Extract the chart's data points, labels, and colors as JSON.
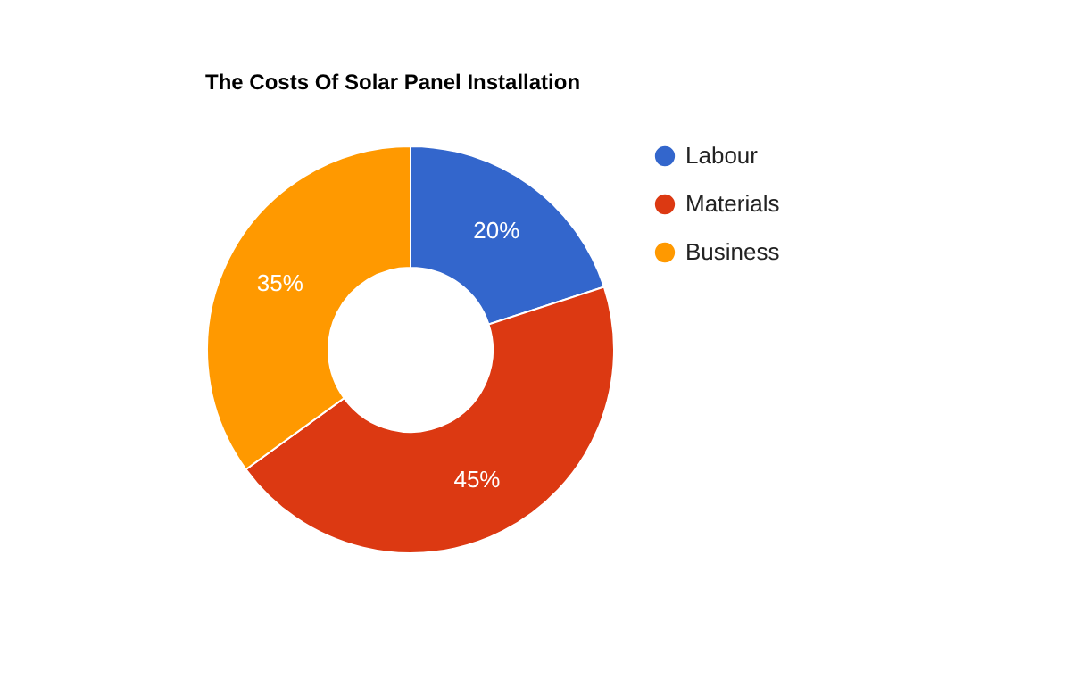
{
  "chart_data": {
    "type": "donut",
    "title": "The Costs Of Solar Panel Installation",
    "categories": [
      "Labour",
      "Materials",
      "Business"
    ],
    "values": [
      20,
      45,
      35
    ],
    "colors": [
      "#3366cc",
      "#dc3912",
      "#ff9900"
    ],
    "value_labels": [
      "20%",
      "45%",
      "35%"
    ],
    "legend": "right"
  }
}
